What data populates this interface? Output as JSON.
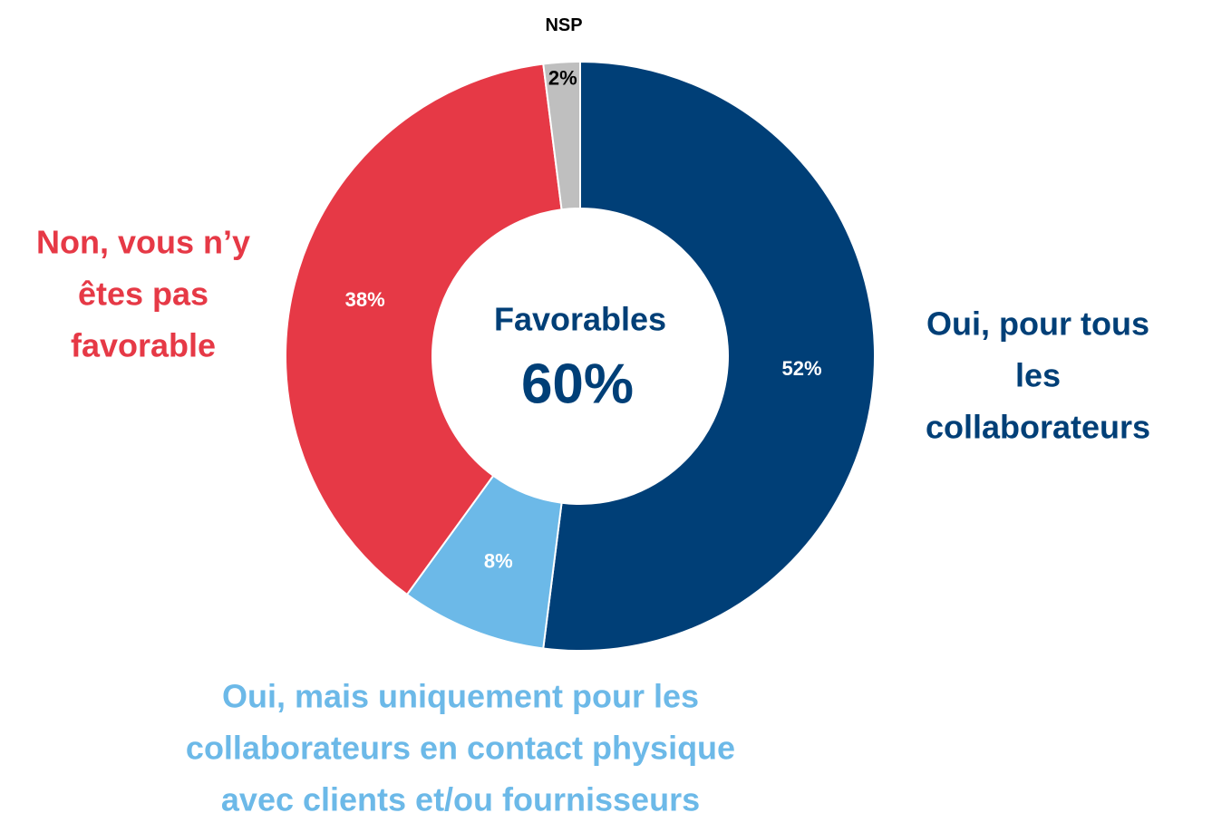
{
  "chart_data": {
    "type": "donut",
    "categories": [
      "Oui, pour tous\nles collaborateurs",
      "Oui, mais uniquement pour les\ncollaborateurs en contact physique\navec clients et/ou fournisseurs",
      "Non, vous n’y\nêtes pas\nfavorable",
      "NSP"
    ],
    "values": [
      52,
      8,
      38,
      2
    ],
    "value_labels": [
      "52%",
      "8%",
      "38%",
      "2%"
    ],
    "colors": [
      "#003f77",
      "#6cb9e8",
      "#e63946",
      "#bfbfbf"
    ],
    "center_title": "Favorables",
    "center_value": "60%"
  }
}
